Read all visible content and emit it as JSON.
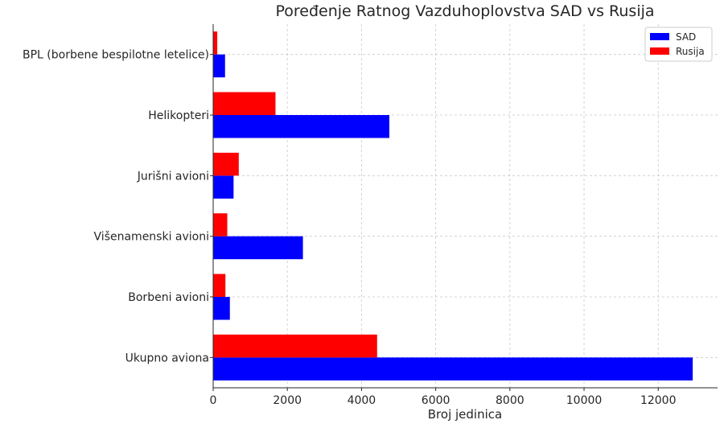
{
  "chart_data": {
    "type": "bar",
    "orientation": "horizontal",
    "title": "Poređenje Ratnog Vazduhoplovstva SAD vs Rusija",
    "xlabel": "Broj jedinica",
    "ylabel": "",
    "categories": [
      "Ukupno aviona",
      "Borbeni avioni",
      "Višenamenski avioni",
      "Jurišni avioni",
      "Helikopteri",
      "BPL (borbene bespilotne letelice)"
    ],
    "series": [
      {
        "name": "SAD",
        "color": "#0000ff",
        "values": [
          12930,
          450,
          2420,
          550,
          4750,
          320
        ]
      },
      {
        "name": "Rusija",
        "color": "#ff0000",
        "values": [
          4420,
          330,
          380,
          690,
          1680,
          110
        ]
      }
    ],
    "xlim": [
      0,
      13600
    ],
    "xticks": [
      0,
      2000,
      4000,
      6000,
      8000,
      10000,
      12000
    ],
    "xtick_labels": [
      "0",
      "2000",
      "4000",
      "6000",
      "8000",
      "10000",
      "12000"
    ],
    "grid": true,
    "legend_position": "top-right"
  }
}
